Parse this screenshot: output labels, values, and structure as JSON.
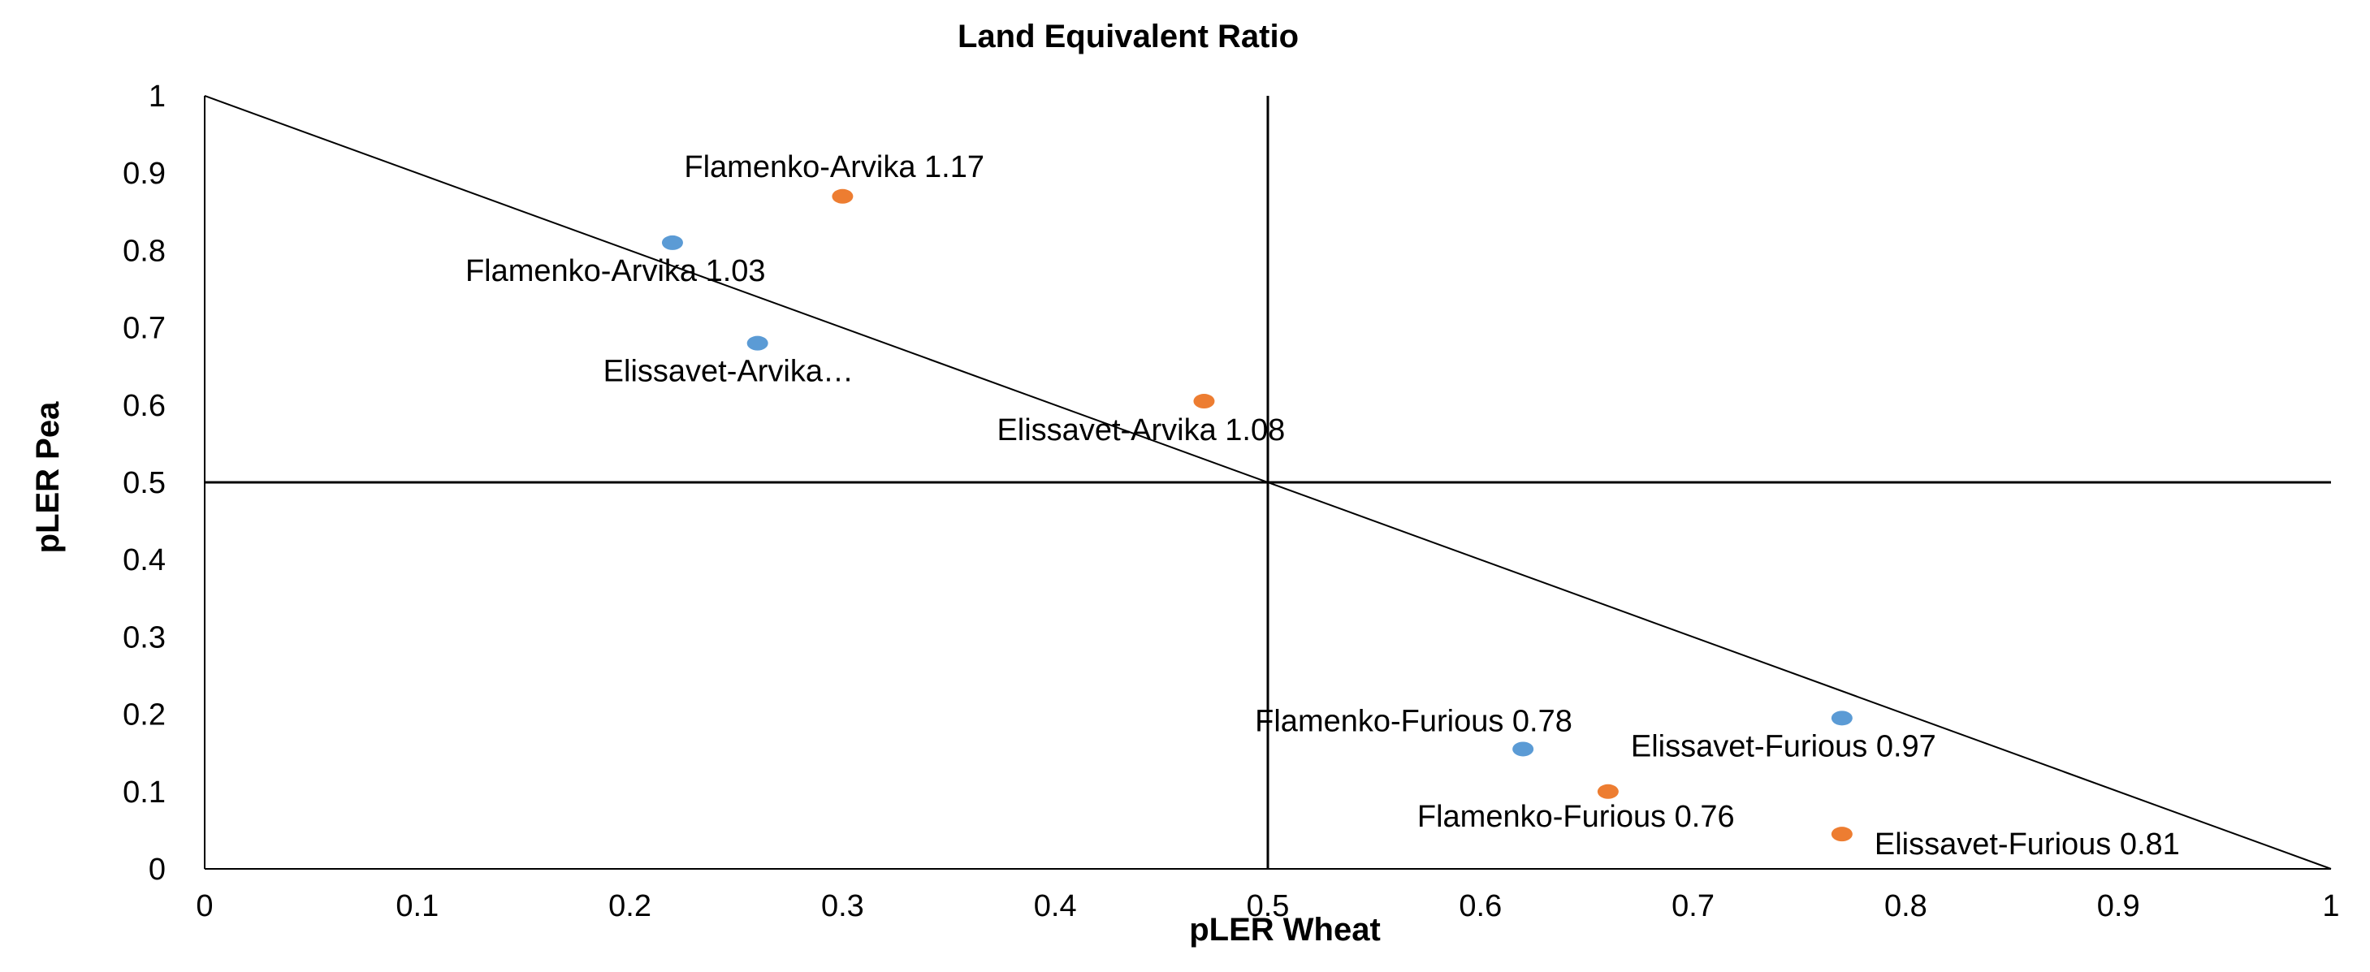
{
  "chart_data": {
    "type": "scatter",
    "title": "Land Equivalent Ratio",
    "xlabel": "pLER Wheat",
    "ylabel": "pLER Pea",
    "xlim": [
      0,
      1
    ],
    "ylim": [
      0,
      1
    ],
    "x_ticks": [
      "0",
      "0.1",
      "0.2",
      "0.3",
      "0.4",
      "0.5",
      "0.6",
      "0.7",
      "0.8",
      "0.9",
      "1"
    ],
    "y_ticks": [
      "0",
      "0.1",
      "0.2",
      "0.3",
      "0.4",
      "0.5",
      "0.6",
      "0.7",
      "0.8",
      "0.9",
      "1"
    ],
    "grid": false,
    "reference_lines": [
      {
        "kind": "diagonal",
        "from": [
          0,
          1
        ],
        "to": [
          1,
          0
        ]
      },
      {
        "kind": "vertical",
        "x": 0.5
      },
      {
        "kind": "horizontal",
        "y": 0.5
      }
    ],
    "colors": {
      "blue": "#5b9bd5",
      "orange": "#ed7d31"
    },
    "series": [
      {
        "color": "#5b9bd5",
        "points": [
          {
            "x": 0.22,
            "y": 0.81,
            "label": "Flamenko-Arvika 1.03"
          },
          {
            "x": 0.26,
            "y": 0.68,
            "label": "Elissavet-Arvika…"
          },
          {
            "x": 0.62,
            "y": 0.155,
            "label": "Flamenko-Furious 0.78"
          },
          {
            "x": 0.77,
            "y": 0.195,
            "label": "Elissavet-Furious 0.97"
          }
        ]
      },
      {
        "color": "#ed7d31",
        "points": [
          {
            "x": 0.3,
            "y": 0.87,
            "label": "Flamenko-Arvika 1.17"
          },
          {
            "x": 0.47,
            "y": 0.605,
            "label": "Elissavet-Arvika 1.08"
          },
          {
            "x": 0.66,
            "y": 0.1,
            "label": "Flamenko-Furious 0.76"
          },
          {
            "x": 0.77,
            "y": 0.045,
            "label": "Elissavet-Furious 0.81"
          }
        ]
      }
    ]
  }
}
